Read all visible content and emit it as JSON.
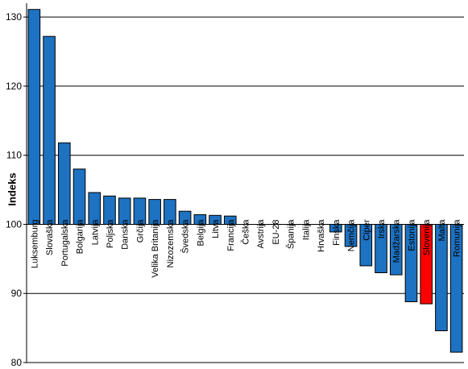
{
  "chart_data": {
    "type": "bar",
    "ylabel": "Indeks",
    "xlabel": "",
    "title": "",
    "ylim": [
      80,
      132
    ],
    "yticks": [
      80,
      90,
      100,
      110,
      120,
      130
    ],
    "baseline": 100,
    "grid": true,
    "bar_color": "#1d72c2",
    "highlight_color": "#ff0000",
    "highlight_category": "Slovenija",
    "categories": [
      "Luksemburg",
      "Slovaška",
      "Portugalska",
      "Bolgarija",
      "Latvija",
      "Poljska",
      "Danska",
      "Grčija",
      "Velika Britanija",
      "Nizozemska",
      "Švedska",
      "Belgija",
      "Litva",
      "Francija",
      "Češka",
      "Avstrija",
      "EU-28",
      "Španija",
      "Italija",
      "Hrvaška",
      "Finska",
      "Nemčija",
      "Ciper",
      "Irska",
      "Madžarska",
      "Estonija",
      "Slovenija",
      "Malta",
      "Romunija"
    ],
    "values": [
      131.1,
      127.2,
      111.8,
      108.0,
      104.6,
      104.1,
      103.8,
      103.8,
      103.6,
      103.6,
      101.9,
      101.4,
      101.3,
      101.2,
      100,
      100,
      100,
      100,
      100,
      100,
      98.9,
      96.8,
      94.0,
      93.0,
      92.7,
      88.8,
      88.5,
      84.6,
      81.5
    ]
  }
}
